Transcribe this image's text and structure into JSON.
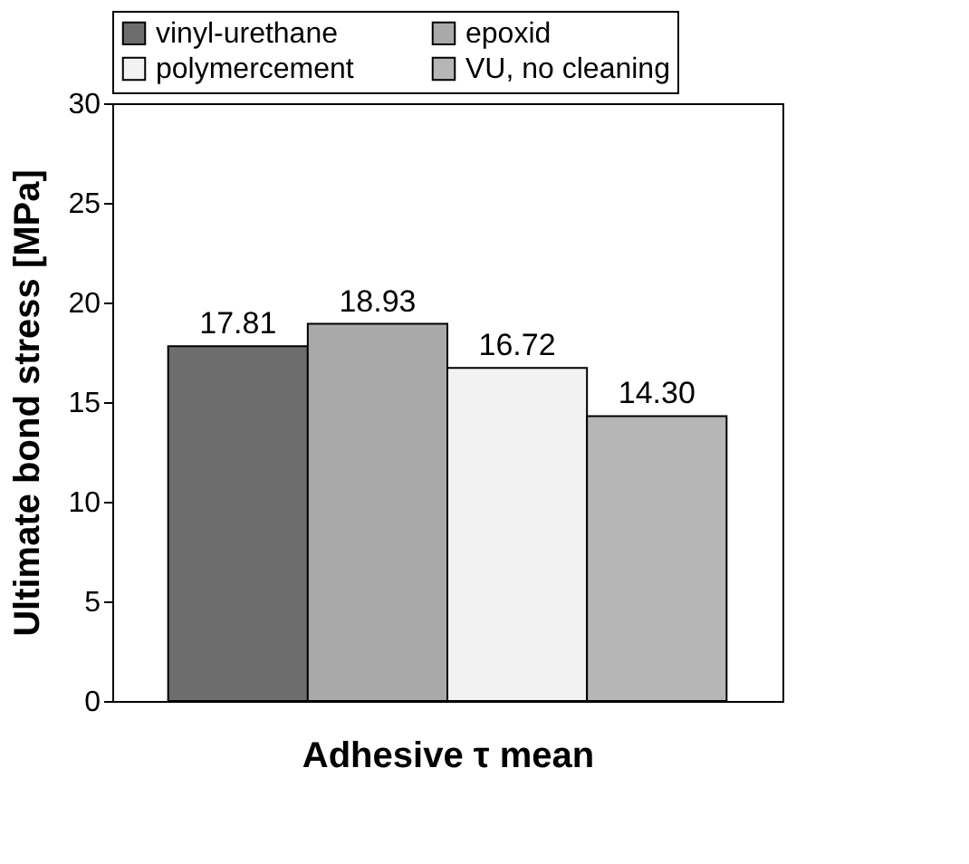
{
  "chart_data": {
    "type": "bar",
    "xlabel": "Adhesive τ mean",
    "ylabel": "Ultimate bond stress [MPa]",
    "categories": [
      null
    ],
    "series": [
      {
        "name": "vinyl-urethane",
        "color": "#6d6d6d",
        "values": [
          17.81
        ],
        "value_labels": [
          "17.81"
        ]
      },
      {
        "name": "epoxid",
        "color": "#a9a9a9",
        "values": [
          18.93
        ],
        "value_labels": [
          "18.93"
        ]
      },
      {
        "name": "polymercement",
        "color": "#f2f2f2",
        "values": [
          16.72
        ],
        "value_labels": [
          "16.72"
        ]
      },
      {
        "name": "VU, no cleaning",
        "color": "#b6b6b6",
        "values": [
          14.3
        ],
        "value_labels": [
          "14.30"
        ]
      }
    ],
    "ylim": [
      0,
      30
    ],
    "yticks": [
      0,
      5,
      10,
      15,
      20,
      25,
      30
    ],
    "grid": false,
    "legend": "top"
  }
}
